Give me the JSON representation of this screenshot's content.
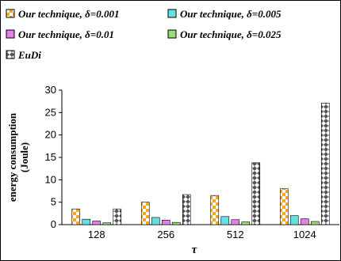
{
  "chart_data": {
    "type": "bar",
    "categories": [
      "128",
      "256",
      "512",
      "1024"
    ],
    "series": [
      {
        "name": "Our technique, δ=0.001",
        "values": [
          3.5,
          5.0,
          6.5,
          8.0
        ],
        "color": "#f5a623",
        "pattern": "checker"
      },
      {
        "name": "Our technique, δ=0.005",
        "values": [
          1.2,
          1.6,
          1.8,
          2.0
        ],
        "color": "#66e0e0",
        "pattern": "solid"
      },
      {
        "name": "Our technique, δ=0.01",
        "values": [
          0.8,
          1.0,
          1.1,
          1.3
        ],
        "color": "#e080e8",
        "pattern": "solid"
      },
      {
        "name": "Our technique, δ=0.025",
        "values": [
          0.4,
          0.5,
          0.6,
          0.7
        ],
        "color": "#99dd77",
        "pattern": "solid"
      },
      {
        "name": "EuDi",
        "values": [
          3.5,
          6.7,
          13.8,
          27.1
        ],
        "color": "#555555",
        "pattern": "diamond"
      }
    ],
    "xlabel": "τ",
    "ylabel": "energy consumption (Joule)",
    "ylabel_lines": [
      "energy consumption",
      "(Joule)"
    ],
    "ylim": [
      0,
      30
    ],
    "yticks": [
      "0",
      "5",
      "10",
      "15",
      "20",
      "25",
      "30"
    ],
    "grid": false,
    "legend": "top"
  }
}
